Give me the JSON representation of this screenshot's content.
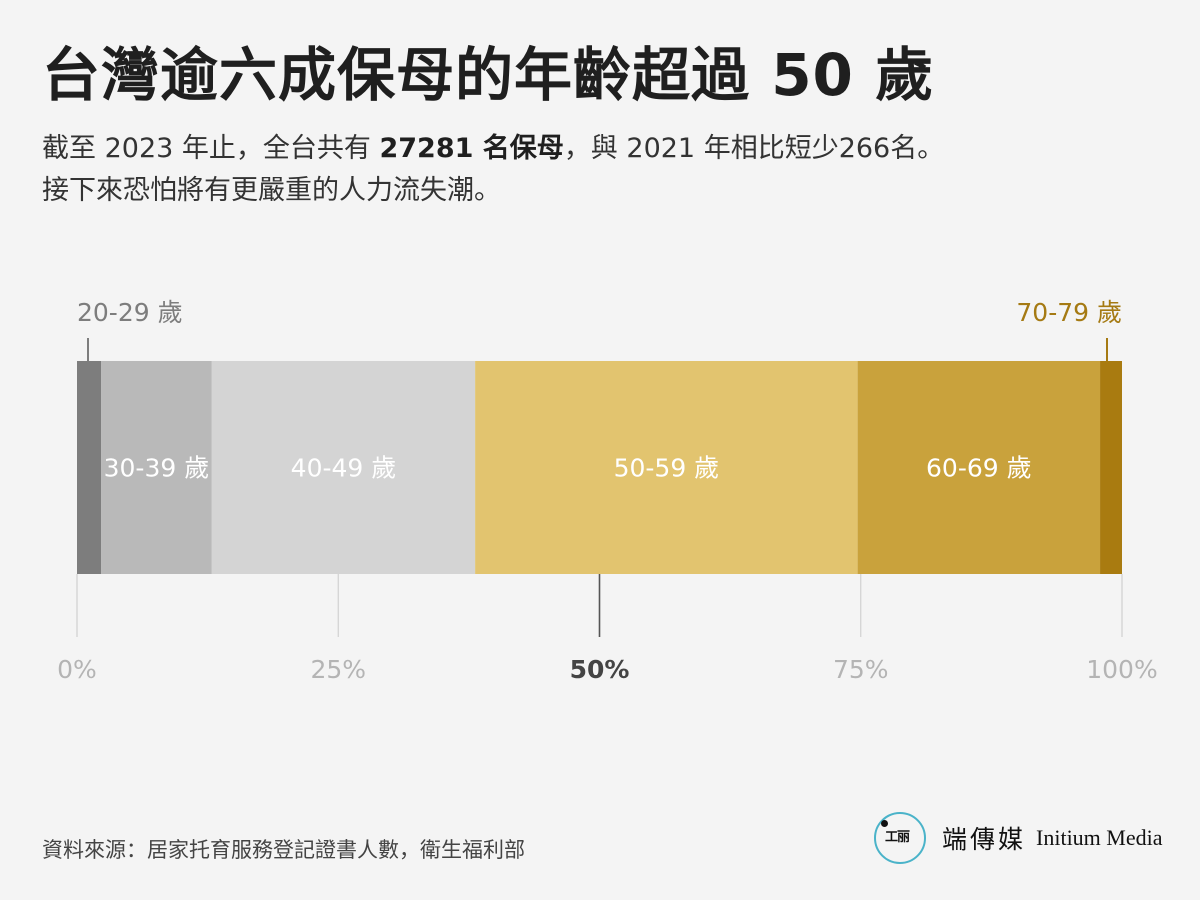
{
  "title": "台灣逾六成保母的年齡超過 50 歲",
  "subtitle": {
    "line1_a": "截至 2023 年止，全台共有 ",
    "line1_bold": "27281 名保母",
    "line1_b": "，與 2021 年相比短少266名。",
    "line2": "接下來恐怕將有更嚴重的人力流失潮。"
  },
  "chart_data": {
    "type": "bar",
    "orientation": "horizontal-stacked-100",
    "unit": "%",
    "xlim": [
      0,
      100
    ],
    "x_ticks": [
      "0%",
      "25%",
      "50%",
      "75%",
      "100%"
    ],
    "highlight_tick": "50%",
    "series": [
      {
        "name": "20-29 歲",
        "value": 2.3,
        "color": "#7d7d7d",
        "label_position": "outside-above",
        "label_color": "#7d7d7d"
      },
      {
        "name": "30-39 歲",
        "value": 10.6,
        "color": "#b9b9b9",
        "label_position": "inside",
        "label_color": "#ffffff"
      },
      {
        "name": "40-49 歲",
        "value": 25.2,
        "color": "#d4d4d4",
        "label_position": "inside",
        "label_color": "#ffffff"
      },
      {
        "name": "50-59 歲",
        "value": 36.6,
        "color": "#e2c46f",
        "label_position": "inside",
        "label_color": "#ffffff"
      },
      {
        "name": "60-69 歲",
        "value": 23.2,
        "color": "#c9a23c",
        "label_position": "inside",
        "label_color": "#ffffff"
      },
      {
        "name": "70-79 歲",
        "value": 2.1,
        "color": "#a97b10",
        "label_position": "outside-above",
        "label_color": "#a57a13"
      }
    ]
  },
  "source": "資料來源：居家托育服務登記證書人數，衛生福利部",
  "brand": {
    "logo_icon": "initium-logo-icon",
    "name_zh": "端傳媒",
    "name_en": "Initium Media"
  }
}
